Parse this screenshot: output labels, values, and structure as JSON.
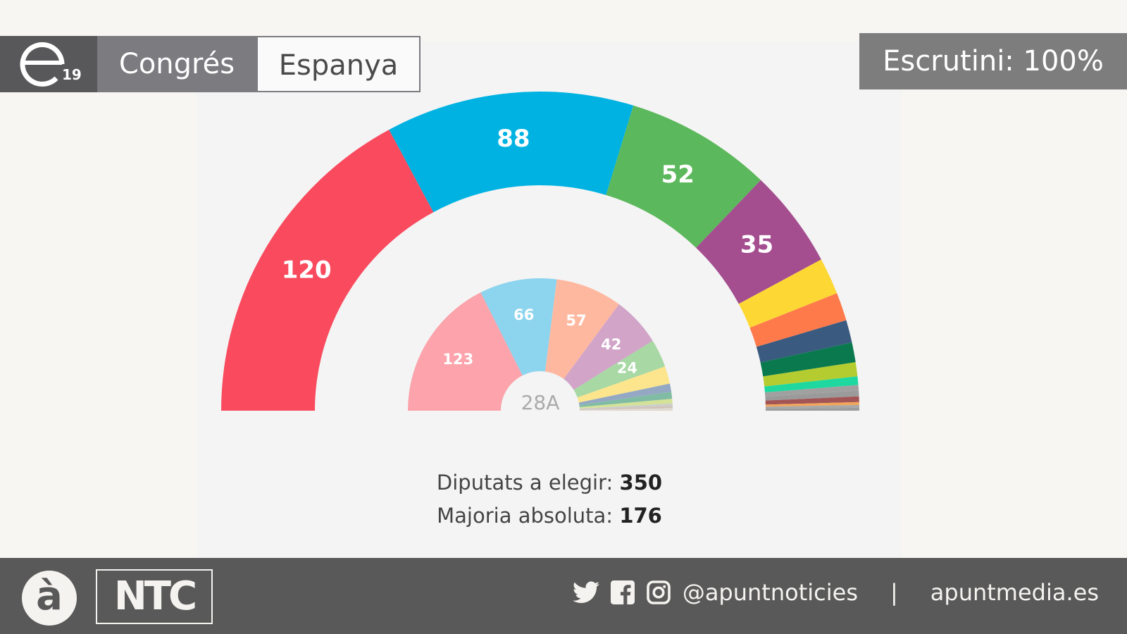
{
  "header": {
    "logo_text": "e19",
    "chamber": "Congrés",
    "region": "Espanya",
    "count_status": "Escrutini: 100%"
  },
  "info": {
    "seats_label": "Diputats a elegir:",
    "seats_value": "350",
    "majority_label": "Majoria absoluta:",
    "majority_value": "176"
  },
  "footer": {
    "brand_logo": "à",
    "program_logo": "NTC",
    "handle": "@apuntnoticies",
    "separator": "|",
    "website": "apuntmedia.es",
    "icons": [
      "twitter-icon",
      "facebook-icon",
      "instagram-icon"
    ]
  },
  "chart_data": {
    "type": "pie",
    "subtype": "hemicycle",
    "total_seats": 350,
    "series": [
      {
        "name": "outer",
        "label_center": "",
        "segments": [
          {
            "seats": 120,
            "color": "#f94a5e",
            "show": true
          },
          {
            "seats": 88,
            "color": "#00b2e2",
            "show": true
          },
          {
            "seats": 52,
            "color": "#5cb85c",
            "show": true
          },
          {
            "seats": 35,
            "color": "#a44e90",
            "show": true
          },
          {
            "seats": 13,
            "color": "#fdd835",
            "show": false
          },
          {
            "seats": 10,
            "color": "#ff7a4a",
            "show": false
          },
          {
            "seats": 8,
            "color": "#3a5a80",
            "show": false
          },
          {
            "seats": 7,
            "color": "#0a7a4e",
            "show": false
          },
          {
            "seats": 5,
            "color": "#b4cc30",
            "show": false
          },
          {
            "seats": 3,
            "color": "#1ed8a0",
            "show": false
          },
          {
            "seats": 2,
            "color": "#a0a0a0",
            "show": false
          },
          {
            "seats": 2,
            "color": "#9a9a9a",
            "show": false
          },
          {
            "seats": 2,
            "color": "#a35555",
            "show": false
          },
          {
            "seats": 1,
            "color": "#f2a55a",
            "show": false
          },
          {
            "seats": 1,
            "color": "#a8a8a8",
            "show": false
          },
          {
            "seats": 1,
            "color": "#9c9c9c",
            "show": false
          }
        ]
      },
      {
        "name": "inner",
        "label_center": "28A",
        "segments": [
          {
            "seats": 123,
            "color": "#fca3ab",
            "show": true
          },
          {
            "seats": 66,
            "color": "#8dd4ee",
            "show": true
          },
          {
            "seats": 57,
            "color": "#ffb8a0",
            "show": true
          },
          {
            "seats": 42,
            "color": "#d1a4c8",
            "show": true
          },
          {
            "seats": 24,
            "color": "#a8d8a4",
            "show": true
          },
          {
            "seats": 15,
            "color": "#fce58c",
            "show": false
          },
          {
            "seats": 7,
            "color": "#94a8c4",
            "show": false
          },
          {
            "seats": 6,
            "color": "#80bca4",
            "show": false
          },
          {
            "seats": 4,
            "color": "#d4e298",
            "show": false
          },
          {
            "seats": 2,
            "color": "#cccccc",
            "show": false
          },
          {
            "seats": 2,
            "color": "#d0c4b8",
            "show": false
          },
          {
            "seats": 1,
            "color": "#dddddd",
            "show": false
          },
          {
            "seats": 1,
            "color": "#e4d4c4",
            "show": false
          }
        ]
      }
    ]
  }
}
